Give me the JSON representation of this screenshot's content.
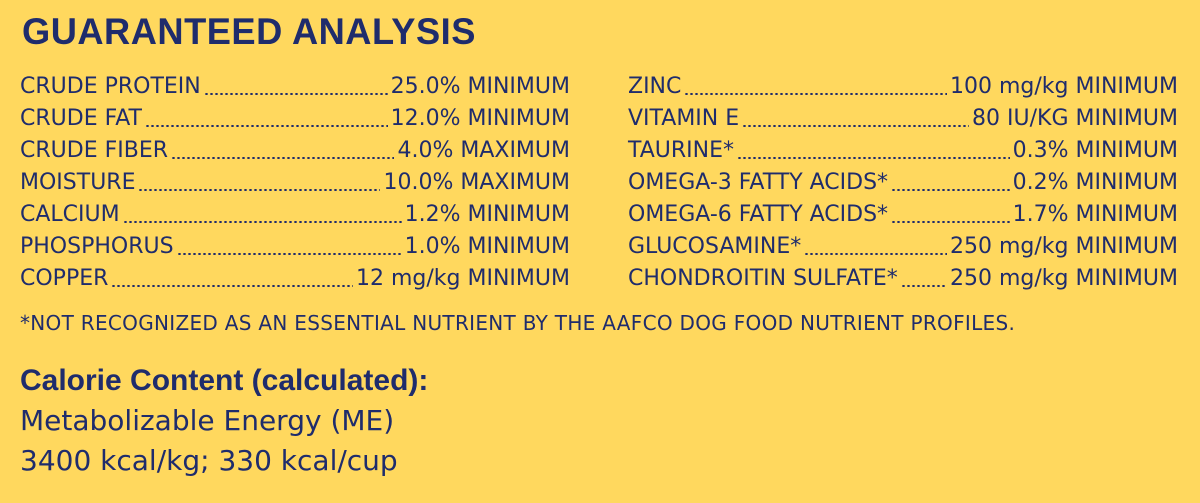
{
  "title": "GUARANTEED ANALYSIS",
  "left_column": [
    {
      "name": "CRUDE PROTEIN",
      "value": "25.0% MINIMUM"
    },
    {
      "name": "CRUDE FAT",
      "value": "12.0% MINIMUM"
    },
    {
      "name": "CRUDE FIBER",
      "value": "4.0% MAXIMUM"
    },
    {
      "name": "MOISTURE",
      "value": "10.0% MAXIMUM"
    },
    {
      "name": "CALCIUM",
      "value": "1.2% MINIMUM"
    },
    {
      "name": "PHOSPHORUS",
      "value": "1.0% MINIMUM"
    },
    {
      "name": "COPPER",
      "value": "12 mg/kg MINIMUM"
    }
  ],
  "right_column": [
    {
      "name": "ZINC",
      "value": "100 mg/kg MINIMUM"
    },
    {
      "name": "VITAMIN E",
      "value": "80 IU/KG MINIMUM"
    },
    {
      "name": "TAURINE*",
      "value": "0.3% MINIMUM"
    },
    {
      "name": "OMEGA-3 FATTY ACIDS*",
      "value": "0.2% MINIMUM"
    },
    {
      "name": "OMEGA-6 FATTY ACIDS*",
      "value": "1.7% MINIMUM"
    },
    {
      "name": "GLUCOSAMINE*",
      "value": "250 mg/kg MINIMUM"
    },
    {
      "name": "CHONDROITIN SULFATE*",
      "value": "250 mg/kg MINIMUM"
    }
  ],
  "footnote": "*NOT RECOGNIZED AS AN ESSENTIAL NUTRIENT BY THE AAFCO DOG FOOD NUTRIENT PROFILES.",
  "calorie": {
    "heading": "Calorie Content (calculated):",
    "line1": "Metabolizable Energy (ME)",
    "line2": "3400 kcal/kg; 330 kcal/cup"
  },
  "colors": {
    "background": "#FFD85E",
    "text": "#1F2C6C"
  }
}
